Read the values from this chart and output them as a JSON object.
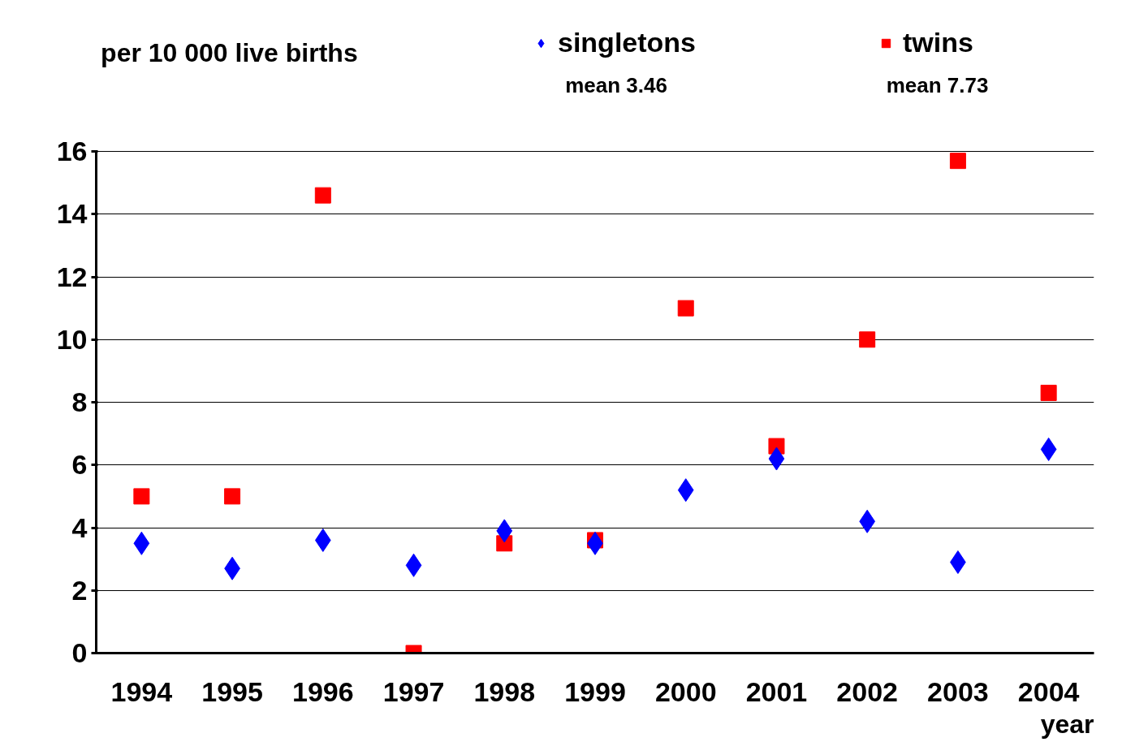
{
  "chart_data": {
    "type": "scatter",
    "ylabel": "per 10 000 live births",
    "xlabel": "year",
    "categories": [
      "1994",
      "1995",
      "1996",
      "1997",
      "1998",
      "1999",
      "2000",
      "2001",
      "2002",
      "2003",
      "2004"
    ],
    "series": [
      {
        "name": "singletons",
        "color": "#0000ff",
        "marker": "diamond",
        "values": [
          3.5,
          2.7,
          3.6,
          2.8,
          3.9,
          3.5,
          5.2,
          6.2,
          4.2,
          2.9,
          6.5
        ]
      },
      {
        "name": "twins",
        "color": "#ff0000",
        "marker": "square",
        "values": [
          5.0,
          5.0,
          14.6,
          0,
          3.5,
          3.6,
          11.0,
          6.6,
          10.0,
          15.7,
          8.3
        ]
      }
    ],
    "annotations": [
      "mean 3.46",
      "mean 7.73"
    ],
    "ylim": [
      0,
      16
    ],
    "yticks": [
      0,
      2,
      4,
      6,
      8,
      10,
      12,
      14,
      16
    ],
    "grid": "y",
    "legend": "top"
  }
}
